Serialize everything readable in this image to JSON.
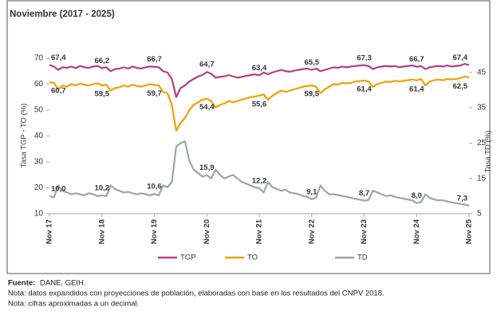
{
  "chart_data": {
    "type": "line",
    "title": "Noviembre (2017 - 2025)",
    "ylabel": "Tasa TGP - TO (%)",
    "y2label": "Tasa TD (%)",
    "ylim": [
      10,
      70
    ],
    "yticks": [
      10,
      20,
      30,
      40,
      50,
      60,
      70
    ],
    "y2lim": [
      5,
      49
    ],
    "y2ticks": [
      5,
      15,
      25,
      35,
      45
    ],
    "legend": "bottom",
    "categories": [
      "Nov 17",
      null,
      null,
      null,
      null,
      null,
      null,
      null,
      null,
      null,
      null,
      null,
      "Nov 18",
      null,
      null,
      null,
      null,
      null,
      null,
      null,
      null,
      null,
      null,
      null,
      "Nov 19",
      null,
      null,
      null,
      null,
      null,
      null,
      null,
      null,
      null,
      null,
      null,
      "Nov 20",
      null,
      null,
      null,
      null,
      null,
      null,
      null,
      null,
      null,
      null,
      null,
      "Nov 21",
      null,
      null,
      null,
      null,
      null,
      null,
      null,
      null,
      null,
      null,
      null,
      "Nov 22",
      null,
      null,
      null,
      null,
      null,
      null,
      null,
      null,
      null,
      null,
      null,
      "Nov 23",
      null,
      null,
      null,
      null,
      null,
      null,
      null,
      null,
      null,
      null,
      null,
      "Nov 24",
      null,
      null,
      null,
      null,
      null,
      null,
      null,
      null,
      null,
      null,
      null,
      "Nov 25"
    ],
    "series": [
      {
        "name": "TGP",
        "color": "#b0427f",
        "label_pos": "above",
        "values": [
          67.4,
          66.8,
          65.5,
          66.5,
          66.3,
          66.8,
          66.2,
          67,
          66.5,
          66.3,
          66.8,
          67,
          66.2,
          66.5,
          65,
          65.8,
          66,
          66.5,
          66,
          66.8,
          66.3,
          66,
          66.5,
          66.8,
          66.7,
          66.5,
          65,
          64.5,
          62,
          55,
          58.5,
          59.5,
          61,
          62,
          63,
          63.5,
          64.7,
          64,
          62.5,
          62.8,
          63,
          63.5,
          63,
          62.5,
          62.8,
          63.2,
          63.5,
          63.8,
          63.4,
          64.5,
          63.8,
          64.5,
          65,
          65.5,
          65,
          64.8,
          65.2,
          65.5,
          65.8,
          66,
          65.5,
          66,
          65,
          65.5,
          66,
          66.5,
          66.3,
          66.8,
          66.5,
          66.8,
          67,
          67.2,
          67.3,
          67,
          65.8,
          66.5,
          66.8,
          67,
          66.8,
          67,
          66.5,
          66.8,
          67,
          67.2,
          66.7,
          67,
          65.8,
          66.5,
          66.8,
          67,
          66.8,
          67.2,
          66.8,
          67,
          67.2,
          67.8,
          67.4
        ],
        "value_labels": [
          "67,4",
          null,
          null,
          null,
          null,
          null,
          null,
          null,
          null,
          null,
          null,
          null,
          "66,2",
          null,
          null,
          null,
          null,
          null,
          null,
          null,
          null,
          null,
          null,
          null,
          "66,7",
          null,
          null,
          null,
          null,
          null,
          null,
          null,
          null,
          null,
          null,
          null,
          "64,7",
          null,
          null,
          null,
          null,
          null,
          null,
          null,
          null,
          null,
          null,
          null,
          "63,4",
          null,
          null,
          null,
          null,
          null,
          null,
          null,
          null,
          null,
          null,
          null,
          "65,5",
          null,
          null,
          null,
          null,
          null,
          null,
          null,
          null,
          null,
          null,
          null,
          "67,3",
          null,
          null,
          null,
          null,
          null,
          null,
          null,
          null,
          null,
          null,
          null,
          "66,7",
          null,
          null,
          null,
          null,
          null,
          null,
          null,
          null,
          null,
          null,
          null,
          "67,4"
        ]
      },
      {
        "name": "TO",
        "color": "#f2a100",
        "label_pos": "below",
        "values": [
          60.7,
          60.5,
          58,
          59.5,
          59,
          60,
          59.5,
          60.2,
          59.8,
          59.5,
          60,
          60.3,
          59.5,
          59.8,
          57.5,
          58.5,
          58.8,
          59.5,
          59,
          59.8,
          59.3,
          59,
          59.5,
          60,
          59.7,
          59.5,
          57,
          56.5,
          52,
          42,
          45,
          47,
          50,
          52,
          53,
          54,
          54.4,
          53.5,
          51,
          52,
          52.5,
          53.5,
          53,
          53.5,
          54,
          54.5,
          55,
          55.2,
          55.6,
          56,
          54,
          55.5,
          56.5,
          57.5,
          57,
          57.5,
          58,
          58.5,
          59,
          59.3,
          59.5,
          59,
          56.5,
          58,
          59,
          60,
          59.8,
          60.5,
          60.3,
          60.5,
          61,
          61.2,
          61.4,
          61,
          59,
          60,
          60.5,
          61,
          60.8,
          61.3,
          61,
          61.3,
          61.5,
          61.8,
          61.4,
          62,
          59.5,
          61,
          61.5,
          61.8,
          61.5,
          62,
          61.8,
          62,
          62.3,
          63,
          62.5
        ],
        "value_labels": [
          "60,7",
          null,
          null,
          null,
          null,
          null,
          null,
          null,
          null,
          null,
          null,
          null,
          "59,5",
          null,
          null,
          null,
          null,
          null,
          null,
          null,
          null,
          null,
          null,
          null,
          "59,7",
          null,
          null,
          null,
          null,
          null,
          null,
          null,
          null,
          null,
          null,
          null,
          "54,4",
          null,
          null,
          null,
          null,
          null,
          null,
          null,
          null,
          null,
          null,
          null,
          "55,6",
          null,
          null,
          null,
          null,
          null,
          null,
          null,
          null,
          null,
          null,
          null,
          "59,5",
          null,
          null,
          null,
          null,
          null,
          null,
          null,
          null,
          null,
          null,
          null,
          "61,4",
          null,
          null,
          null,
          null,
          null,
          null,
          null,
          null,
          null,
          null,
          null,
          "61,4",
          null,
          null,
          null,
          null,
          null,
          null,
          null,
          null,
          null,
          null,
          null,
          "62,5"
        ]
      },
      {
        "name": "TD",
        "color": "#98a9a4",
        "axis": "y2",
        "label_pos": "above",
        "values": [
          10,
          9.6,
          13,
          11.5,
          11,
          10.5,
          10.8,
          10.5,
          10.2,
          10.8,
          10.5,
          10,
          10.2,
          10,
          13,
          12,
          11.5,
          11,
          11.2,
          10.8,
          10.5,
          10.8,
          10.5,
          10.2,
          10.6,
          10.2,
          13,
          12.5,
          14,
          24,
          25,
          25.5,
          20,
          17.5,
          16.5,
          15.5,
          15.9,
          15,
          17.5,
          16,
          15,
          15.5,
          16,
          15,
          14,
          13.5,
          13,
          12.5,
          12.2,
          11,
          14,
          12.5,
          12,
          11.5,
          11.8,
          11,
          10.8,
          10.5,
          10,
          9.8,
          9.1,
          9.5,
          13,
          11.5,
          10.5,
          10.5,
          10.3,
          10,
          9.8,
          9.5,
          9.2,
          9,
          8.7,
          8.9,
          11.5,
          11,
          10.5,
          10,
          10.2,
          9.8,
          9.5,
          9.3,
          9,
          8.8,
          8,
          8.3,
          10.5,
          9.5,
          9,
          8.8,
          8.8,
          8.5,
          8.2,
          8,
          7.8,
          7.6,
          7.3
        ],
        "value_labels": [
          "10,0",
          null,
          null,
          null,
          null,
          null,
          null,
          null,
          null,
          null,
          null,
          null,
          "10,2",
          null,
          null,
          null,
          null,
          null,
          null,
          null,
          null,
          null,
          null,
          null,
          "10,6",
          null,
          null,
          null,
          null,
          null,
          null,
          null,
          null,
          null,
          null,
          null,
          "15,9",
          null,
          null,
          null,
          null,
          null,
          null,
          null,
          null,
          null,
          null,
          null,
          "12,2",
          null,
          null,
          null,
          null,
          null,
          null,
          null,
          null,
          null,
          null,
          null,
          "9,1",
          null,
          null,
          null,
          null,
          null,
          null,
          null,
          null,
          null,
          null,
          null,
          "8,7",
          null,
          null,
          null,
          null,
          null,
          null,
          null,
          null,
          null,
          null,
          null,
          "8,0",
          null,
          null,
          null,
          null,
          null,
          null,
          null,
          null,
          null,
          null,
          null,
          "7,3"
        ]
      }
    ]
  },
  "footer": {
    "source_label": "Fuente:",
    "source": "DANE, GEIH.",
    "notes": [
      "Nota: datos expandidos con proyecciones de población, elaboradas con base en los resultados del CNPV 2018.",
      "Nota: cifras aproximadas a un decimal."
    ]
  }
}
